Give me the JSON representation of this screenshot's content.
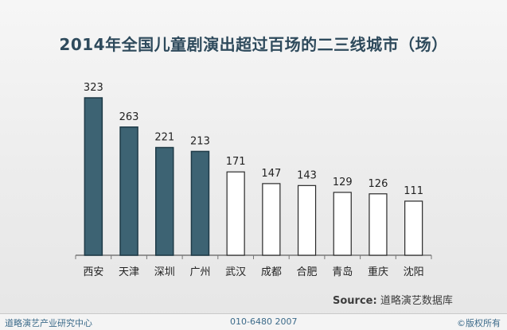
{
  "chart_data": {
    "type": "bar",
    "title": "2014年全国儿童剧演出超过百场的二三线城市（场）",
    "categories": [
      "西安",
      "天津",
      "深圳",
      "广州",
      "武汉",
      "成都",
      "合肥",
      "青岛",
      "重庆",
      "沈阳"
    ],
    "values": [
      323,
      263,
      221,
      213,
      171,
      147,
      143,
      129,
      126,
      111
    ],
    "highlighted_count": 4,
    "ylim": [
      0,
      350
    ],
    "grid": false,
    "colors": {
      "highlight_fill": "#3d6373",
      "highlight_stroke": "#1e3a47",
      "plain_fill": "#ffffff",
      "plain_stroke": "#2a2a2a",
      "axis": "#777777",
      "label": "#222222"
    }
  },
  "source": {
    "prefix": "Source:",
    "text": "道略演艺数据库"
  },
  "footer": {
    "left": "道略演艺产业研究中心",
    "middle": "010-6480 2007",
    "right": "©版权所有"
  }
}
